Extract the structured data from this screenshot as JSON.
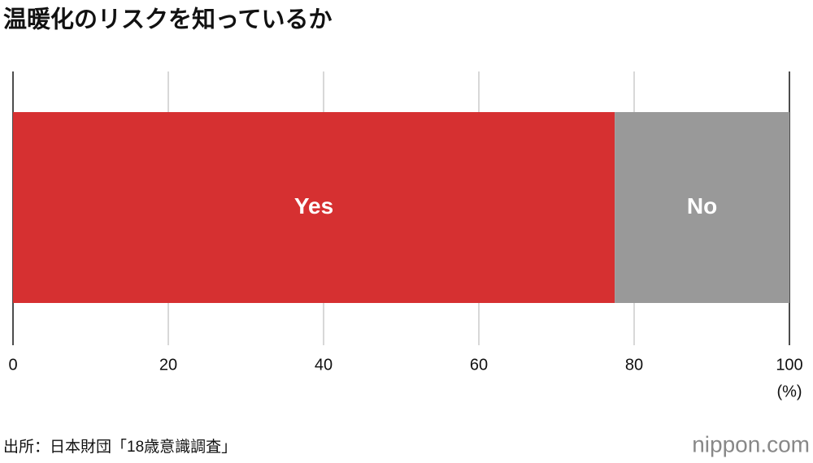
{
  "chart_data": {
    "type": "stacked-bar",
    "orientation": "horizontal",
    "title": "温暖化のリスクを知っているか",
    "series": [
      {
        "name": "Yes",
        "color": "#d63031",
        "values": [
          77.5
        ]
      },
      {
        "name": "No",
        "color": "#999999",
        "values": [
          22.5
        ]
      }
    ],
    "xlim": [
      0,
      100
    ],
    "xticks": [
      0,
      20,
      40,
      60,
      80,
      100
    ],
    "xlabel": "(%)",
    "grid": true,
    "source": "出所：日本財団「18歳意識調査」",
    "brand": "nippon.com"
  }
}
